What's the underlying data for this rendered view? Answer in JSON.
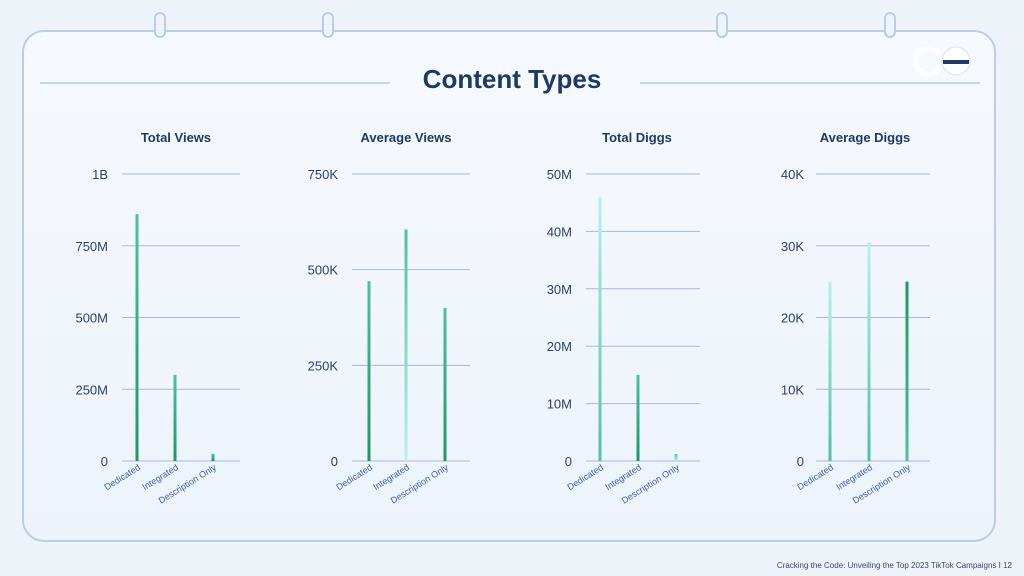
{
  "slide": {
    "title": "Content Types",
    "footer": "Cracking the Code: Unveiling the Top 2023 TikTok Campaigns I 12"
  },
  "colors": {
    "title": "#1b3a66",
    "grid": "#a9b8cf",
    "bar_dark": "#1a9a5f",
    "bar_mid": "#4cc2a0",
    "bar_light": "#b6f1ee"
  },
  "chart_data": [
    {
      "type": "bar",
      "title": "Total Views",
      "categories": [
        "Dedicated",
        "Integrated",
        "Description Only"
      ],
      "values": [
        860000000,
        300000000,
        25000000
      ],
      "ylim": [
        0,
        1000000000
      ],
      "yticks": [
        0,
        250000000,
        500000000,
        750000000,
        1000000000
      ],
      "yticklabels": [
        "0",
        "250M",
        "500M",
        "750M",
        "1B"
      ],
      "grid": true
    },
    {
      "type": "bar",
      "title": "Average Views",
      "categories": [
        "Dedicated",
        "Integrated",
        "Description Only"
      ],
      "values": [
        470000,
        605000,
        400000
      ],
      "ylim": [
        0,
        750000
      ],
      "yticks": [
        0,
        250000,
        500000,
        750000
      ],
      "yticklabels": [
        "0",
        "250K",
        "500K",
        "750K"
      ],
      "grid": true
    },
    {
      "type": "bar",
      "title": "Total Diggs",
      "categories": [
        "Dedicated",
        "Integrated",
        "Description Only"
      ],
      "values": [
        46000000,
        15000000,
        1200000
      ],
      "ylim": [
        0,
        50000000
      ],
      "yticks": [
        0,
        10000000,
        20000000,
        30000000,
        40000000,
        50000000
      ],
      "yticklabels": [
        "0",
        "10M",
        "20M",
        "30M",
        "40M",
        "50M"
      ],
      "grid": true
    },
    {
      "type": "bar",
      "title": "Average Diggs",
      "categories": [
        "Dedicated",
        "Integrated",
        "Description Only"
      ],
      "values": [
        25000,
        30500,
        25000
      ],
      "ylim": [
        0,
        40000
      ],
      "yticks": [
        0,
        10000,
        20000,
        30000,
        40000
      ],
      "yticklabels": [
        "0",
        "10K",
        "20K",
        "30K",
        "40K"
      ],
      "grid": true
    }
  ]
}
